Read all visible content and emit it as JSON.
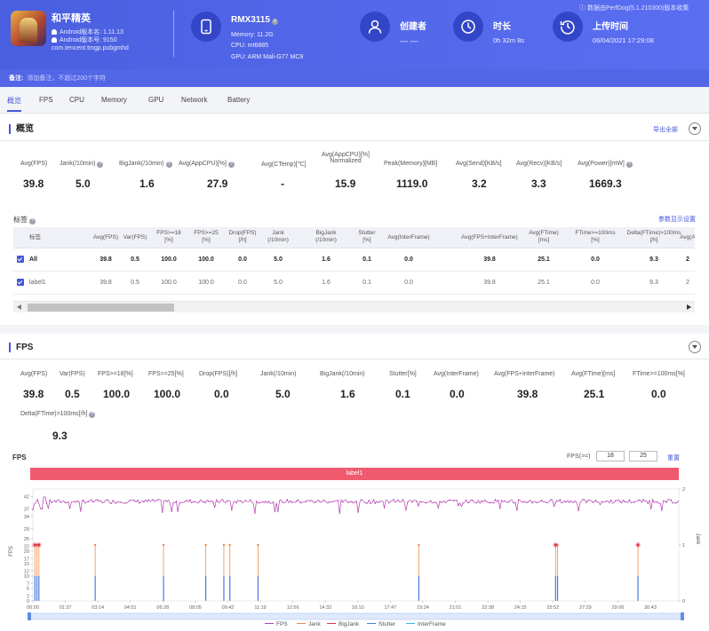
{
  "header": {
    "app_name": "和平精英",
    "android_version": "Android版本名: 1.11.13",
    "android_code": "Android版本号: 9150",
    "package": "com.tencent.tmgp.pubgmhd",
    "device_name": "RMX3115",
    "memory": "Memory: 11.2G",
    "cpu": "CPU: mt6885",
    "gpu": "GPU: ARM Mali-G77 MC9",
    "creator_label": "创建者",
    "creator_value": "— —",
    "duration_label": "时长",
    "duration_value": "0h 32m 8s",
    "upload_label": "上传时间",
    "upload_value": "06/04/2021 17:29:08",
    "corner_text": "ⓘ 数据由PerfDog(5.1.210300)版本收集"
  },
  "note": {
    "label": "备注:",
    "placeholder": "添加备注，不超过200个字符"
  },
  "tabs": [
    "概览",
    "FPS",
    "CPU",
    "Memory",
    "GPU",
    "Network",
    "Battery"
  ],
  "overview": {
    "title": "概览",
    "export_label": "导出全部",
    "metrics": [
      {
        "label": "Avg(FPS)",
        "value": "39.8",
        "help": false
      },
      {
        "label": "Jank(/10min)",
        "value": "5.0",
        "help": true
      },
      {
        "label": "BigJank(/10min)",
        "value": "1.6",
        "help": true
      },
      {
        "label": "Avg(AppCPU)[%]",
        "value": "27.9",
        "help": true
      },
      {
        "label": "Avg(CTemp)[℃]",
        "value": "-",
        "help": false
      },
      {
        "label": "Avg(AppCPU)[%]",
        "label2": "Normalized",
        "value": "15.9",
        "help": true
      },
      {
        "label": "Peak(Memory)[MB]",
        "value": "1119.0",
        "help": false
      },
      {
        "label": "Avg(Send)[KB/s]",
        "value": "3.2",
        "help": false
      },
      {
        "label": "Avg(Recv)[KB/s]",
        "value": "3.3",
        "help": false
      },
      {
        "label": "Avg(Power)[mW]",
        "value": "1669.3",
        "help": true
      }
    ]
  },
  "tags": {
    "title": "标签",
    "param_settings": "参数显示设置",
    "columns": [
      "标签",
      "Avg(FPS)",
      "Var(FPS)",
      "FPS>=18\n[%]",
      "FPS>=25\n[%]",
      "Drop(FPS)\n[/h]",
      "Jank\n(/10min)",
      "BigJank\n(/10min)",
      "Stutter\n[%]",
      "Avg(InterFrame)",
      "Avg(FPS+InterFrame)",
      "Avg(FTime)\n[ms]",
      "FTime>=100ms\n[%]",
      "Delta(FTime)>100ms\n[/h]",
      "Avg(A"
    ],
    "rows": [
      {
        "name": "All",
        "cells": [
          "39.8",
          "0.5",
          "100.0",
          "100.0",
          "0.0",
          "5.0",
          "1.6",
          "0.1",
          "0.0",
          "39.8",
          "25.1",
          "0.0",
          "9.3",
          "2"
        ]
      },
      {
        "name": "label1",
        "cells": [
          "39.8",
          "0.5",
          "100.0",
          "100.0",
          "0.0",
          "5.0",
          "1.6",
          "0.1",
          "0.0",
          "39.8",
          "25.1",
          "0.0",
          "9.3",
          "2"
        ]
      }
    ]
  },
  "fps_section": {
    "title": "FPS",
    "metrics": [
      {
        "label": "Avg(FPS)",
        "value": "39.8"
      },
      {
        "label": "Var(FPS)",
        "value": "0.5"
      },
      {
        "label": "FPS>=18[%]",
        "value": "100.0"
      },
      {
        "label": "FPS>=25[%]",
        "value": "100.0"
      },
      {
        "label": "Drop(FPS)[/h]",
        "value": "0.0"
      },
      {
        "label": "Jank(/10min)",
        "value": "5.0"
      },
      {
        "label": "BigJank(/10min)",
        "value": "1.6"
      },
      {
        "label": "Stutter[%]",
        "value": "0.1"
      },
      {
        "label": "Avg(InterFrame)",
        "value": "0.0"
      },
      {
        "label": "Avg(FPS+InterFrame)",
        "value": "39.8"
      },
      {
        "label": "Avg(FTime)[ms]",
        "value": "25.1"
      },
      {
        "label": "FTime>=100ms[%]",
        "value": "0.0"
      }
    ],
    "extra_metric": {
      "label": "Delta(FTime)>100ms[/h]",
      "value": "9.3"
    },
    "chart_label": "FPS",
    "range_label": "FPS(>=)",
    "range_low": "18",
    "range_high": "25",
    "reset_label": "重置"
  },
  "chart_data": {
    "type": "line",
    "title": "FPS",
    "label_band": "label1",
    "ylabel": "FPS",
    "y2label": "Jank",
    "yticks": [
      0,
      2,
      5,
      7,
      10,
      12,
      15,
      17,
      20,
      22,
      25,
      29,
      34,
      37,
      42
    ],
    "y2ticks": [
      0,
      1,
      2
    ],
    "ylim": [
      0,
      45
    ],
    "y2lim": [
      0,
      2
    ],
    "x_ticks": [
      "00:00",
      "01:37",
      "03:14",
      "04:51",
      "06:28",
      "08:05",
      "09:42",
      "11:19",
      "12:56",
      "14:33",
      "16:10",
      "17:47",
      "19:24",
      "21:01",
      "22:38",
      "24:15",
      "25:52",
      "27:29",
      "29:06",
      "30:43"
    ],
    "series": [
      {
        "name": "FPS",
        "color": "#b23cb0",
        "typical": 40
      },
      {
        "name": "Jank",
        "color": "#f08a45"
      },
      {
        "name": "BigJank",
        "color": "#e0344a"
      },
      {
        "name": "Stutter",
        "color": "#4a7bd8"
      },
      {
        "name": "InterFrame",
        "color": "#38b4e6"
      }
    ],
    "jank_times_min": [
      0.1,
      0.2,
      0.3,
      3.1,
      6.5,
      8.6,
      9.5,
      9.8,
      11.2,
      19.2,
      26.0,
      26.1,
      30.1
    ],
    "bigjank_times_min": [
      0.1,
      0.3,
      26.0,
      30.1
    ]
  }
}
